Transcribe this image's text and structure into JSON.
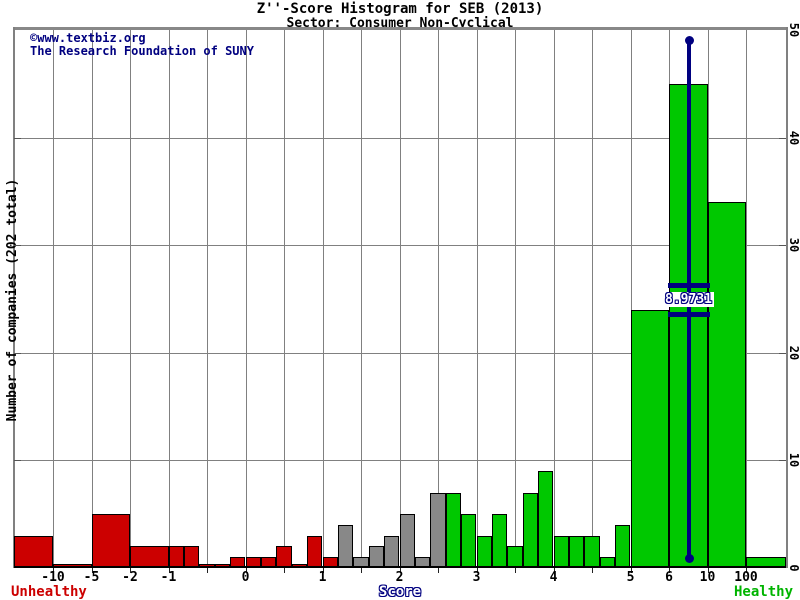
{
  "title": "Z''-Score Histogram for SEB (2013)",
  "subtitle": "Sector: Consumer Non-Cyclical",
  "watermark": {
    "line1": "©www.textbiz.org",
    "line2": "The Research Foundation of SUNY"
  },
  "axis_footer": {
    "unhealthy_label": "Unhealthy",
    "score_label": "Score",
    "healthy_label": "Healthy"
  },
  "colors": {
    "unhealthy": "#cc0000",
    "gray_zone": "#888888",
    "healthy": "#00c800",
    "marker": "#000080",
    "gridline": "#808080",
    "watermark_text": "#000080",
    "title_text": "#000000"
  },
  "chart_data": {
    "type": "bar",
    "title": "Z''-Score Histogram for SEB (2013)",
    "subtitle": "Sector: Consumer Non-Cyclical",
    "xlabel": "Score",
    "ylabel": "Number of companies (202 total)",
    "total_companies": 202,
    "ylim": [
      0,
      50
    ],
    "yticks": [
      0,
      10,
      20,
      30,
      40,
      50
    ],
    "grid": true,
    "legend": "none",
    "x_axis_note": "non-linear piecewise scale; gx = evenly spaced gridline index 0..18",
    "xticks": [
      {
        "label": "-10",
        "gx": 0
      },
      {
        "label": "-5",
        "gx": 1
      },
      {
        "label": "-2",
        "gx": 2
      },
      {
        "label": "-1",
        "gx": 3
      },
      {
        "label": "0",
        "gx": 5
      },
      {
        "label": "1",
        "gx": 7
      },
      {
        "label": "2",
        "gx": 9
      },
      {
        "label": "3",
        "gx": 11
      },
      {
        "label": "4",
        "gx": 13
      },
      {
        "label": "5",
        "gx": 15
      },
      {
        "label": "6",
        "gx": 16
      },
      {
        "label": "10",
        "gx": 17
      },
      {
        "label": "100",
        "gx": 18
      }
    ],
    "marker": {
      "label": "8.9731",
      "value": 8.9731,
      "gx": 16.52
    },
    "bins": [
      {
        "range": "< -10",
        "count": 3,
        "zone": "unhealthy",
        "gx": [
          -1.01,
          0
        ]
      },
      {
        "range": "-10 to -5",
        "count": 0,
        "zone": "unhealthy",
        "gx": [
          0,
          1
        ]
      },
      {
        "range": "-5 to -2",
        "count": 5,
        "zone": "unhealthy",
        "gx": [
          1,
          2
        ]
      },
      {
        "range": "-2 to -1",
        "count": 2,
        "zone": "unhealthy",
        "gx": [
          2,
          3
        ]
      },
      {
        "range": "-1 to -0.8",
        "count": 2,
        "zone": "unhealthy",
        "gx": [
          3,
          3.4
        ]
      },
      {
        "range": "-0.8 to -0.6",
        "count": 2,
        "zone": "unhealthy",
        "gx": [
          3.4,
          3.8
        ]
      },
      {
        "range": "-0.6 to -0.4",
        "count": 0,
        "zone": "unhealthy",
        "gx": [
          3.8,
          4.2
        ]
      },
      {
        "range": "-0.4 to -0.2",
        "count": 0,
        "zone": "unhealthy",
        "gx": [
          4.2,
          4.6
        ]
      },
      {
        "range": "-0.2 to 0",
        "count": 1,
        "zone": "unhealthy",
        "gx": [
          4.6,
          5
        ]
      },
      {
        "range": "0 to 0.2",
        "count": 1,
        "zone": "unhealthy",
        "gx": [
          5,
          5.4
        ]
      },
      {
        "range": "0.2 to 0.4",
        "count": 1,
        "zone": "unhealthy",
        "gx": [
          5.4,
          5.8
        ]
      },
      {
        "range": "0.4 to 0.6",
        "count": 2,
        "zone": "unhealthy",
        "gx": [
          5.8,
          6.2
        ]
      },
      {
        "range": "0.6 to 0.8",
        "count": 0,
        "zone": "unhealthy",
        "gx": [
          6.2,
          6.6
        ]
      },
      {
        "range": "0.8 to 1",
        "count": 3,
        "zone": "unhealthy",
        "gx": [
          6.6,
          7
        ]
      },
      {
        "range": "1 to 1.2",
        "count": 1,
        "zone": "unhealthy",
        "gx": [
          7,
          7.4
        ]
      },
      {
        "range": "1.2 to 1.4",
        "count": 4,
        "zone": "gray",
        "gx": [
          7.4,
          7.8
        ]
      },
      {
        "range": "1.4 to 1.6",
        "count": 1,
        "zone": "gray",
        "gx": [
          7.8,
          8.2
        ]
      },
      {
        "range": "1.6 to 1.8",
        "count": 2,
        "zone": "gray",
        "gx": [
          8.2,
          8.6
        ]
      },
      {
        "range": "1.8 to 2",
        "count": 3,
        "zone": "gray",
        "gx": [
          8.6,
          9
        ]
      },
      {
        "range": "2 to 2.2",
        "count": 5,
        "zone": "gray",
        "gx": [
          9,
          9.4
        ]
      },
      {
        "range": "2.2 to 2.4",
        "count": 1,
        "zone": "gray",
        "gx": [
          9.4,
          9.8
        ]
      },
      {
        "range": "2.4 to 2.6",
        "count": 7,
        "zone": "gray",
        "gx": [
          9.8,
          10.2
        ]
      },
      {
        "range": "2.6 to 2.8",
        "count": 7,
        "zone": "healthy",
        "gx": [
          10.2,
          10.6
        ]
      },
      {
        "range": "2.8 to 3",
        "count": 5,
        "zone": "healthy",
        "gx": [
          10.6,
          11
        ]
      },
      {
        "range": "3 to 3.2",
        "count": 3,
        "zone": "healthy",
        "gx": [
          11,
          11.4
        ]
      },
      {
        "range": "3.2 to 3.4",
        "count": 5,
        "zone": "healthy",
        "gx": [
          11.4,
          11.8
        ]
      },
      {
        "range": "3.4 to 3.6",
        "count": 2,
        "zone": "healthy",
        "gx": [
          11.8,
          12.2
        ]
      },
      {
        "range": "3.6 to 3.8",
        "count": 7,
        "zone": "healthy",
        "gx": [
          12.2,
          12.6
        ]
      },
      {
        "range": "3.8 to 4",
        "count": 9,
        "zone": "healthy",
        "gx": [
          12.6,
          13
        ]
      },
      {
        "range": "4 to 4.2",
        "count": 3,
        "zone": "healthy",
        "gx": [
          13,
          13.4
        ]
      },
      {
        "range": "4.2 to 4.4",
        "count": 3,
        "zone": "healthy",
        "gx": [
          13.4,
          13.8
        ]
      },
      {
        "range": "4.4 to 4.6",
        "count": 3,
        "zone": "healthy",
        "gx": [
          13.8,
          14.2
        ]
      },
      {
        "range": "4.6 to 4.8",
        "count": 1,
        "zone": "healthy",
        "gx": [
          14.2,
          14.6
        ]
      },
      {
        "range": "4.8 to 5",
        "count": 4,
        "zone": "healthy",
        "gx": [
          14.6,
          15
        ]
      },
      {
        "range": "5 to 6",
        "count": 24,
        "zone": "healthy",
        "gx": [
          15,
          16
        ]
      },
      {
        "range": "6 to 10",
        "count": 45,
        "zone": "healthy",
        "gx": [
          16,
          17
        ]
      },
      {
        "range": "10 to 100",
        "count": 34,
        "zone": "healthy",
        "gx": [
          17,
          18
        ]
      },
      {
        "range": "> 100",
        "count": 1,
        "zone": "healthy",
        "gx": [
          18,
          19.04
        ]
      }
    ]
  }
}
